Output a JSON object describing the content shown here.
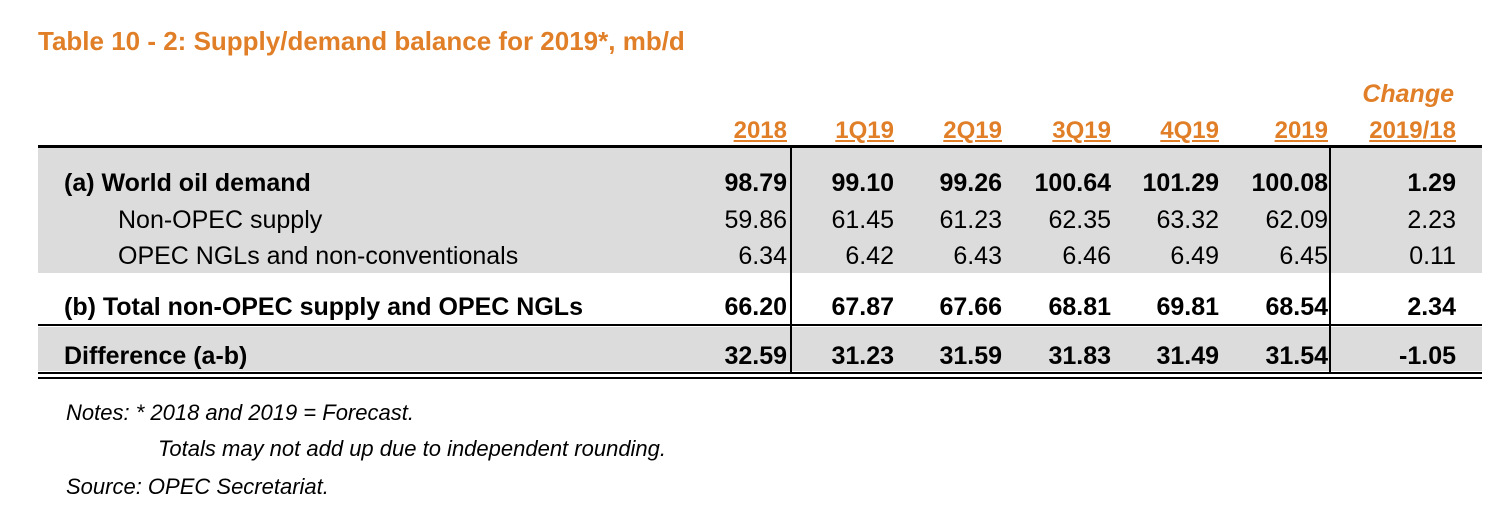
{
  "title": "Table 10 - 2: Supply/demand balance for 2019*, mb/d",
  "columns": [
    "2018",
    "1Q19",
    "2Q19",
    "3Q19",
    "4Q19",
    "2019"
  ],
  "change_header": {
    "line1": "Change",
    "line2": "2019/18"
  },
  "rows": [
    {
      "label": "(a) World oil demand",
      "values": [
        "98.79",
        "99.10",
        "99.26",
        "100.64",
        "101.29",
        "100.08"
      ],
      "change": "1.29"
    },
    {
      "label": "Non-OPEC supply",
      "values": [
        "59.86",
        "61.45",
        "61.23",
        "62.35",
        "63.32",
        "62.09"
      ],
      "change": "2.23"
    },
    {
      "label": "OPEC NGLs and non-conventionals",
      "values": [
        "6.34",
        "6.42",
        "6.43",
        "6.46",
        "6.49",
        "6.45"
      ],
      "change": "0.11"
    },
    {
      "label": "(b) Total non-OPEC supply and OPEC NGLs",
      "values": [
        "66.20",
        "67.87",
        "67.66",
        "68.81",
        "69.81",
        "68.54"
      ],
      "change": "2.34"
    },
    {
      "label": "Difference (a-b)",
      "values": [
        "32.59",
        "31.23",
        "31.59",
        "31.83",
        "31.49",
        "31.54"
      ],
      "change": "-1.05"
    }
  ],
  "notes": {
    "line1": "Notes: * 2018 and 2019 = Forecast.",
    "line2": "Totals may not add up due to independent rounding.",
    "source": "Source: OPEC Secretariat."
  }
}
